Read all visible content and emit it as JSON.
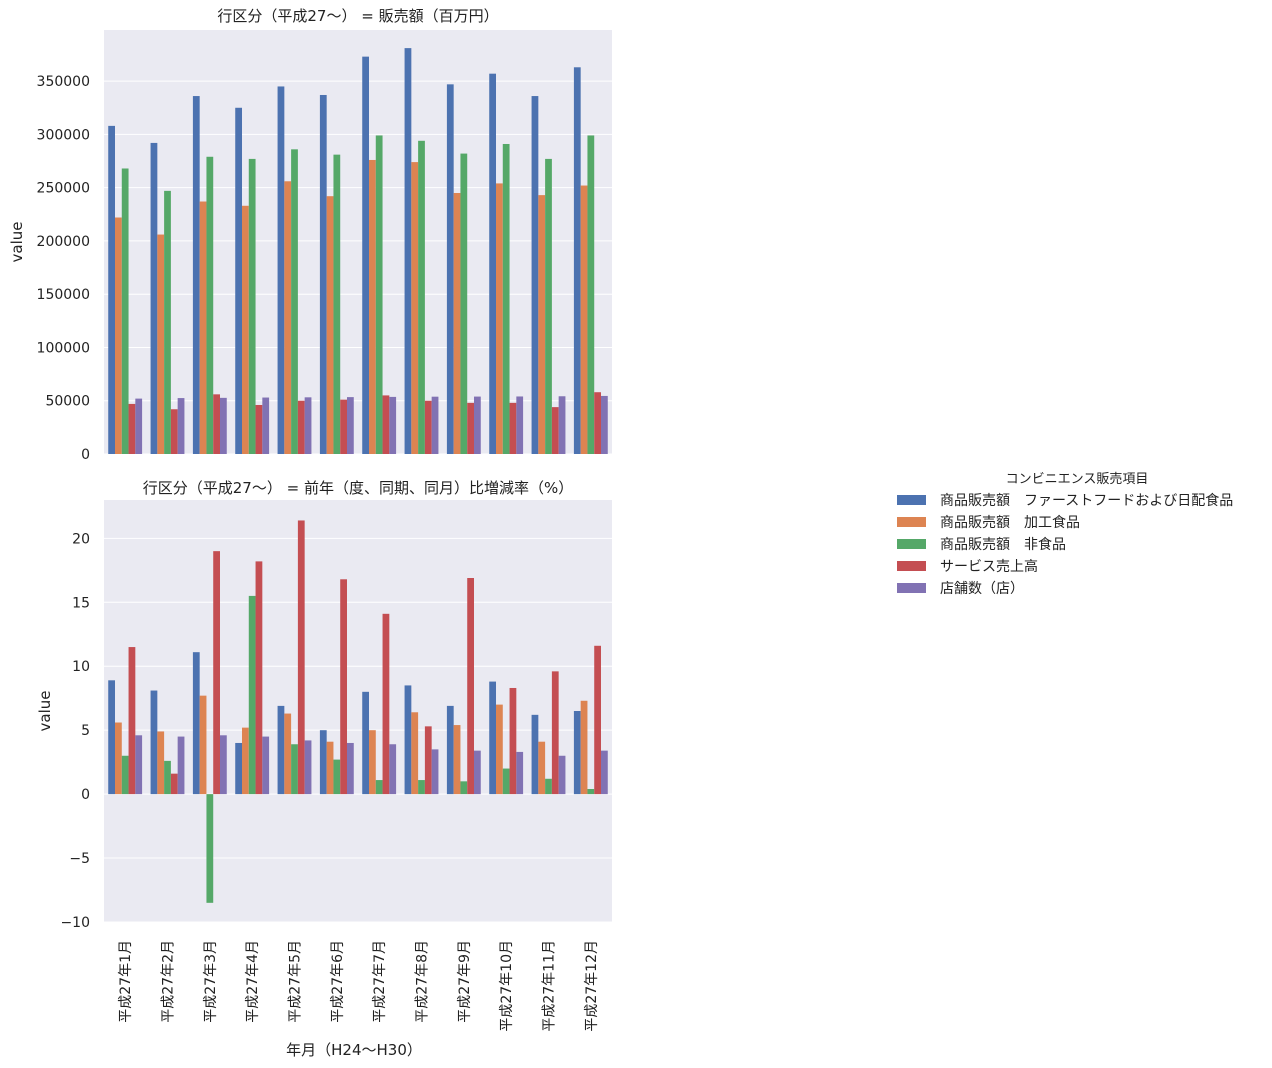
{
  "colors": {
    "plot_background": "#eaeaf2",
    "grid": "#ffffff",
    "series": [
      "#4c72b0",
      "#dd8452",
      "#55a868",
      "#c44e52",
      "#8172b3"
    ]
  },
  "x_axis_label": "年月（H24〜H30）",
  "legend": {
    "title": "コンビニエンス販売項目",
    "entries": [
      "商品販売額　ファーストフードおよび日配食品",
      "商品販売額　加工食品",
      "商品販売額　非食品",
      "サービス売上高",
      "店舗数（店）"
    ]
  },
  "chart_data": [
    {
      "type": "bar",
      "title": "行区分（平成27〜） = 販売額（百万円）",
      "xlabel": "",
      "ylabel": "value",
      "ylim": [
        0,
        398000
      ],
      "yticks": [
        0,
        50000,
        100000,
        150000,
        200000,
        250000,
        300000,
        350000
      ],
      "ytick_labels": [
        "0",
        "50000",
        "100000",
        "150000",
        "200000",
        "250000",
        "300000",
        "350000"
      ],
      "categories": [
        "平成27年1月",
        "平成27年2月",
        "平成27年3月",
        "平成27年4月",
        "平成27年5月",
        "平成27年6月",
        "平成27年7月",
        "平成27年8月",
        "平成27年9月",
        "平成27年10月",
        "平成27年11月",
        "平成27年12月"
      ],
      "series": [
        {
          "name": "商品販売額　ファーストフードおよび日配食品",
          "values": [
            308000,
            292000,
            336000,
            325000,
            345000,
            337000,
            373000,
            381000,
            347000,
            357000,
            336000,
            363000
          ]
        },
        {
          "name": "商品販売額　加工食品",
          "values": [
            222000,
            206000,
            237000,
            233000,
            256000,
            242000,
            276000,
            274000,
            245000,
            254000,
            243000,
            252000
          ]
        },
        {
          "name": "商品販売額　非食品",
          "values": [
            268000,
            247000,
            279000,
            277000,
            286000,
            281000,
            299000,
            294000,
            282000,
            291000,
            277000,
            299000
          ]
        },
        {
          "name": "サービス売上高",
          "values": [
            47000,
            42000,
            56000,
            46000,
            50000,
            51000,
            55000,
            50000,
            48000,
            48000,
            44000,
            58000
          ]
        },
        {
          "name": "店舗数（店）",
          "values": [
            52000,
            52500,
            52700,
            53000,
            53200,
            53400,
            53600,
            53800,
            53900,
            54000,
            54200,
            54500
          ]
        }
      ]
    },
    {
      "type": "bar",
      "title": "行区分（平成27〜） = 前年（度、同期、同月）比増減率（%）",
      "xlabel": "年月（H24〜H30）",
      "ylabel": "value",
      "ylim": [
        -10,
        23
      ],
      "yticks": [
        -10,
        -5,
        0,
        5,
        10,
        15,
        20
      ],
      "ytick_labels": [
        "−10",
        "−5",
        "0",
        "5",
        "10",
        "15",
        "20"
      ],
      "categories": [
        "平成27年1月",
        "平成27年2月",
        "平成27年3月",
        "平成27年4月",
        "平成27年5月",
        "平成27年6月",
        "平成27年7月",
        "平成27年8月",
        "平成27年9月",
        "平成27年10月",
        "平成27年11月",
        "平成27年12月"
      ],
      "series": [
        {
          "name": "商品販売額　ファーストフードおよび日配食品",
          "values": [
            8.9,
            8.1,
            11.1,
            4.0,
            6.9,
            5.0,
            8.0,
            8.5,
            6.9,
            8.8,
            6.2,
            6.5
          ]
        },
        {
          "name": "商品販売額　加工食品",
          "values": [
            5.6,
            4.9,
            7.7,
            5.2,
            6.3,
            4.1,
            5.0,
            6.4,
            5.4,
            7.0,
            4.1,
            7.3
          ]
        },
        {
          "name": "商品販売額　非食品",
          "values": [
            3.0,
            2.6,
            -8.5,
            15.5,
            3.9,
            2.7,
            1.1,
            1.1,
            1.0,
            2.0,
            1.2,
            0.4
          ]
        },
        {
          "name": "サービス売上高",
          "values": [
            11.5,
            1.6,
            19.0,
            18.2,
            21.4,
            16.8,
            14.1,
            5.3,
            16.9,
            8.3,
            9.6,
            11.6
          ]
        },
        {
          "name": "店舗数（店）",
          "values": [
            4.6,
            4.5,
            4.6,
            4.5,
            4.2,
            4.0,
            3.9,
            3.5,
            3.4,
            3.3,
            3.0,
            3.4
          ]
        }
      ]
    }
  ]
}
